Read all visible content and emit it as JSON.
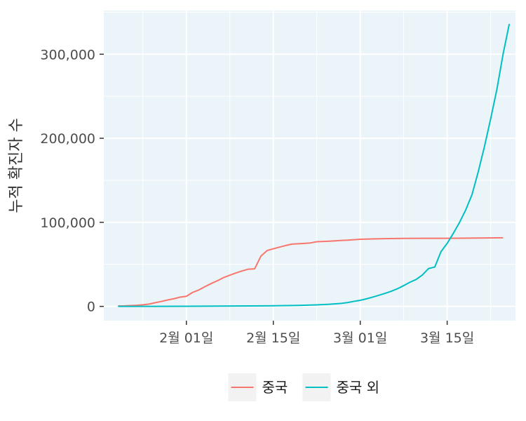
{
  "chart_data": {
    "type": "line",
    "ylabel": "누적 확진자 수",
    "xlabel": "",
    "x_tick_labels": [
      "2월 01일",
      "2월 15일",
      "3월 01일",
      "3월 15일"
    ],
    "x_ticks_day": [
      10,
      24,
      38,
      52
    ],
    "y_tick_labels": [
      "0",
      "100,000",
      "200,000",
      "300,000"
    ],
    "y_ticks": [
      0,
      100000,
      200000,
      300000
    ],
    "xlim_day": [
      -3.3,
      63
    ],
    "ylim": [
      -17000,
      352000
    ],
    "grid": true,
    "legend_position": "bottom",
    "colors": {
      "panel_bg": "#ebf4f8",
      "grid": "#ffffff",
      "china": "#F8766D",
      "outside": "#00BFC4"
    },
    "series": [
      {
        "name": "중국",
        "color": "#F8766D",
        "points": [
          [
            -1,
            550
          ],
          [
            0,
            640
          ],
          [
            1,
            900
          ],
          [
            2,
            1300
          ],
          [
            3,
            1900
          ],
          [
            4,
            2700
          ],
          [
            5,
            4400
          ],
          [
            6,
            5900
          ],
          [
            7,
            7600
          ],
          [
            8,
            9100
          ],
          [
            9,
            11000
          ],
          [
            10,
            12000
          ],
          [
            11,
            16600
          ],
          [
            12,
            19500
          ],
          [
            13,
            23500
          ],
          [
            14,
            27200
          ],
          [
            15,
            30500
          ],
          [
            16,
            34300
          ],
          [
            17,
            37100
          ],
          [
            18,
            39800
          ],
          [
            19,
            42200
          ],
          [
            20,
            44300
          ],
          [
            21,
            44700
          ],
          [
            22,
            59800
          ],
          [
            23,
            66400
          ],
          [
            24,
            68500
          ],
          [
            25,
            70500
          ],
          [
            26,
            72400
          ],
          [
            27,
            74100
          ],
          [
            28,
            74500
          ],
          [
            29,
            74900
          ],
          [
            30,
            75500
          ],
          [
            31,
            76900
          ],
          [
            32,
            77200
          ],
          [
            33,
            77600
          ],
          [
            34,
            78000
          ],
          [
            35,
            78500
          ],
          [
            36,
            78800
          ],
          [
            37,
            79300
          ],
          [
            38,
            79800
          ],
          [
            40,
            80300
          ],
          [
            42,
            80600
          ],
          [
            45,
            80900
          ],
          [
            48,
            81000
          ],
          [
            51,
            81000
          ],
          [
            54,
            81100
          ],
          [
            57,
            81300
          ],
          [
            61,
            81600
          ]
        ]
      },
      {
        "name": "중국 외",
        "color": "#00BFC4",
        "points": [
          [
            -1,
            0
          ],
          [
            5,
            20
          ],
          [
            10,
            130
          ],
          [
            15,
            300
          ],
          [
            20,
            500
          ],
          [
            24,
            700
          ],
          [
            28,
            1200
          ],
          [
            31,
            1800
          ],
          [
            33,
            2500
          ],
          [
            35,
            3600
          ],
          [
            36,
            4600
          ],
          [
            37,
            6000
          ],
          [
            38,
            7200
          ],
          [
            39,
            9000
          ],
          [
            40,
            11000
          ],
          [
            41,
            13200
          ],
          [
            42,
            15500
          ],
          [
            43,
            18000
          ],
          [
            44,
            21000
          ],
          [
            45,
            24700
          ],
          [
            46,
            28700
          ],
          [
            47,
            32000
          ],
          [
            48,
            37300
          ],
          [
            49,
            45000
          ],
          [
            50,
            46800
          ],
          [
            51,
            65000
          ],
          [
            52,
            75000
          ],
          [
            53,
            87000
          ],
          [
            54,
            100000
          ],
          [
            55,
            115000
          ],
          [
            56,
            133000
          ],
          [
            57,
            160000
          ],
          [
            58,
            190000
          ],
          [
            59,
            223000
          ],
          [
            60,
            258000
          ],
          [
            61,
            300000
          ],
          [
            62,
            336000
          ]
        ]
      }
    ]
  }
}
